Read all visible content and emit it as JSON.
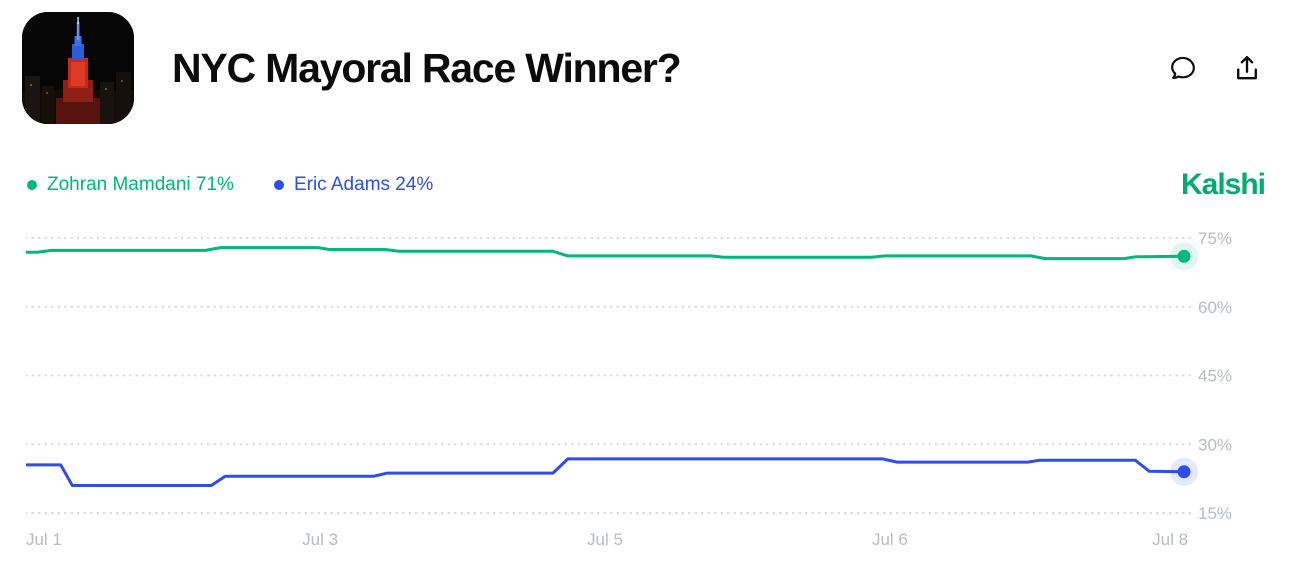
{
  "header": {
    "title": "NYC Mayoral Race Winner?",
    "app_icon": "empire-state-building-night-photo",
    "actions": {
      "comment": "comment",
      "share": "share"
    }
  },
  "legend": [
    {
      "label": "Zohran Mamdani",
      "value": "71%",
      "text": "Zohran Mamdani 71%",
      "color": "#00B877"
    },
    {
      "label": "Eric Adams",
      "value": "24%",
      "text": "Eric Adams 24%",
      "color": "#2D4EEA"
    }
  ],
  "brand": {
    "name": "Kalshi",
    "color": "#00AC6E"
  },
  "chart_data": {
    "type": "line",
    "title": "NYC Mayoral Race Winner?",
    "x_labels": [
      "Jul 1",
      "Jul 3",
      "Jul 5",
      "Jul 6",
      "Jul 8"
    ],
    "x_range": [
      "Jul 1",
      "Jul 8"
    ],
    "y_ticks": [
      "75%",
      "60%",
      "45%",
      "30%",
      "15%"
    ],
    "ylim": [
      13,
      79
    ],
    "grid": "dotted-horizontal",
    "y_axis_side": "right",
    "legend_position": "top-left",
    "series": [
      {
        "name": "Zohran Mamdani",
        "current": "71%",
        "color": "#00B877",
        "points": [
          [
            0.0,
            71.9
          ],
          [
            0.01,
            71.9
          ],
          [
            0.022,
            72.3
          ],
          [
            0.155,
            72.3
          ],
          [
            0.168,
            72.9
          ],
          [
            0.252,
            72.9
          ],
          [
            0.262,
            72.5
          ],
          [
            0.31,
            72.5
          ],
          [
            0.322,
            72.1
          ],
          [
            0.455,
            72.1
          ],
          [
            0.468,
            71.1
          ],
          [
            0.592,
            71.1
          ],
          [
            0.602,
            70.8
          ],
          [
            0.73,
            70.8
          ],
          [
            0.742,
            71.1
          ],
          [
            0.868,
            71.1
          ],
          [
            0.88,
            70.5
          ],
          [
            0.948,
            70.5
          ],
          [
            0.958,
            70.9
          ],
          [
            1.0,
            71.0
          ]
        ]
      },
      {
        "name": "Eric Adams",
        "current": "24%",
        "color": "#2D4EEA",
        "points": [
          [
            0.0,
            25.5
          ],
          [
            0.03,
            25.5
          ],
          [
            0.04,
            21.0
          ],
          [
            0.16,
            21.0
          ],
          [
            0.172,
            23.0
          ],
          [
            0.3,
            23.0
          ],
          [
            0.312,
            23.7
          ],
          [
            0.455,
            23.7
          ],
          [
            0.468,
            26.8
          ],
          [
            0.74,
            26.8
          ],
          [
            0.752,
            26.1
          ],
          [
            0.865,
            26.1
          ],
          [
            0.875,
            26.5
          ],
          [
            0.958,
            26.5
          ],
          [
            0.97,
            24.1
          ],
          [
            1.0,
            24.0
          ]
        ]
      }
    ]
  }
}
